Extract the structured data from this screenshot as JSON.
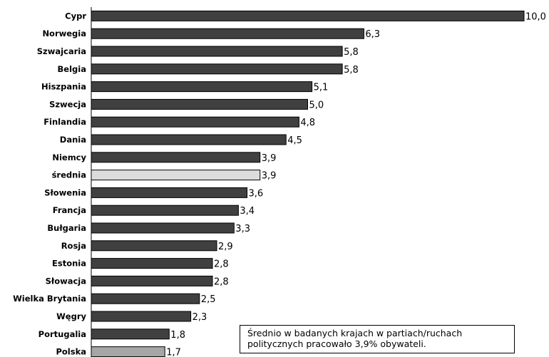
{
  "chart_data": {
    "type": "bar",
    "orientation": "horizontal",
    "categories": [
      "Cypr",
      "Norwegia",
      "Szwajcaria",
      "Belgia",
      "Hiszpania",
      "Szwecja",
      "Finlandia",
      "Dania",
      "Niemcy",
      "średnia",
      "Słowenia",
      "Francja",
      "Bułgaria",
      "Rosja",
      "Estonia",
      "Słowacja",
      "Wielka Brytania",
      "Węgry",
      "Portugalia",
      "Polska"
    ],
    "values": [
      10.0,
      6.3,
      5.8,
      5.8,
      5.1,
      5.0,
      4.8,
      4.5,
      3.9,
      3.9,
      3.6,
      3.4,
      3.3,
      2.9,
      2.8,
      2.8,
      2.5,
      2.3,
      1.8,
      1.7
    ],
    "value_labels": [
      "10,0",
      "6,3",
      "5,8",
      "5,8",
      "5,1",
      "5,0",
      "4,8",
      "4,5",
      "3,9",
      "3,9",
      "3,6",
      "3,4",
      "3,3",
      "2,9",
      "2,8",
      "2,8",
      "2,5",
      "2,3",
      "1,8",
      "1,7"
    ],
    "xlim": [
      0,
      10
    ],
    "grid": false,
    "colors": {
      "default": "#404040",
      "średnia": "#dcdcdc",
      "Polska": "#a6a6a6",
      "stroke": "#000000"
    }
  },
  "note": {
    "line1": "Średnio w badanych krajach w partiach/ruchach",
    "line2": "politycznych pracowało 3,9% obywateli."
  }
}
